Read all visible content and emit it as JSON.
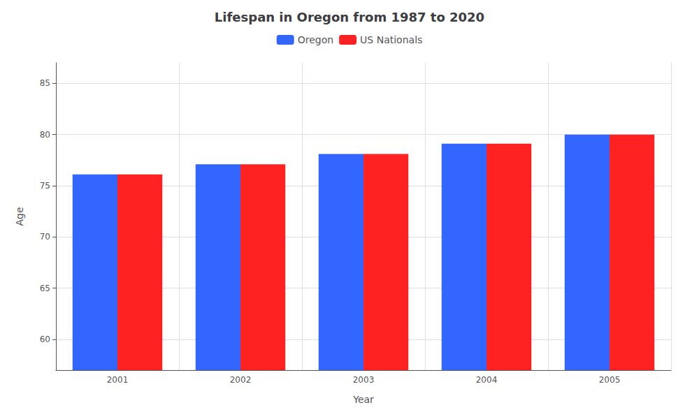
{
  "chart_data": {
    "type": "bar",
    "title": "Lifespan in Oregon from 1987 to 2020",
    "x_label": "Year",
    "y_label": "Age",
    "categories": [
      "2001",
      "2002",
      "2003",
      "2004",
      "2005"
    ],
    "series": [
      {
        "name": "Oregon",
        "color": "#3366ff",
        "values": [
          76.1,
          77.1,
          78.1,
          79.1,
          80.0
        ]
      },
      {
        "name": "US Nationals",
        "color": "#ff2222",
        "values": [
          76.1,
          77.1,
          78.1,
          79.1,
          80.0
        ]
      }
    ],
    "ylim": [
      57,
      87
    ],
    "yticks": [
      60,
      65,
      70,
      75,
      80,
      85
    ],
    "grid": true,
    "legend": "top"
  }
}
